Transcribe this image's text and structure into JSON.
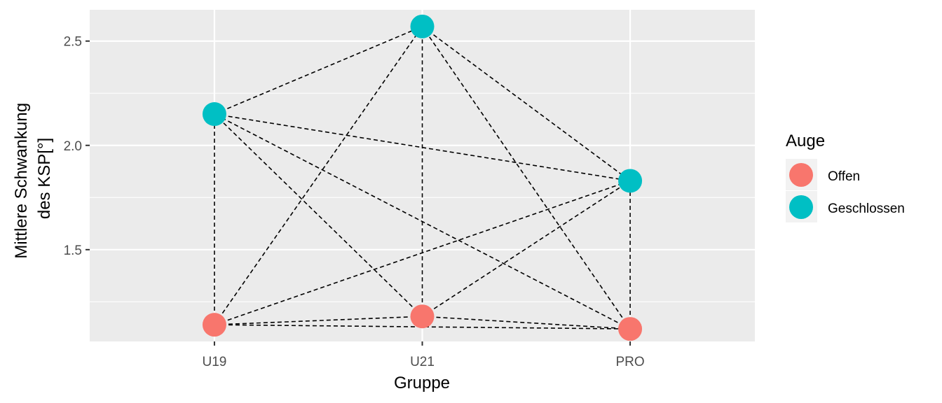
{
  "chart_data": {
    "type": "scatter",
    "categories": [
      "U19",
      "U21",
      "PRO"
    ],
    "xlabel": "Gruppe",
    "ylabel_lines": [
      "Mittlere Schwankung",
      "des KSP[°]"
    ],
    "ylim": [
      1.06,
      2.65
    ],
    "yticks": [
      1.5,
      2.0,
      2.5
    ],
    "ytick_labels": [
      "1.5",
      "2.0",
      "2.5"
    ],
    "grid": true,
    "legend": {
      "title": "Auge",
      "position": "right",
      "entries": [
        {
          "name": "Offen",
          "color": "#F8766D"
        },
        {
          "name": "Geschlossen",
          "color": "#00BFC4"
        }
      ]
    },
    "series": [
      {
        "name": "Offen",
        "color": "#F8766D",
        "values": [
          1.14,
          1.18,
          1.12
        ]
      },
      {
        "name": "Geschlossen",
        "color": "#00BFC4",
        "values": [
          2.15,
          2.57,
          1.83
        ]
      }
    ],
    "connector_style": "dashed"
  }
}
